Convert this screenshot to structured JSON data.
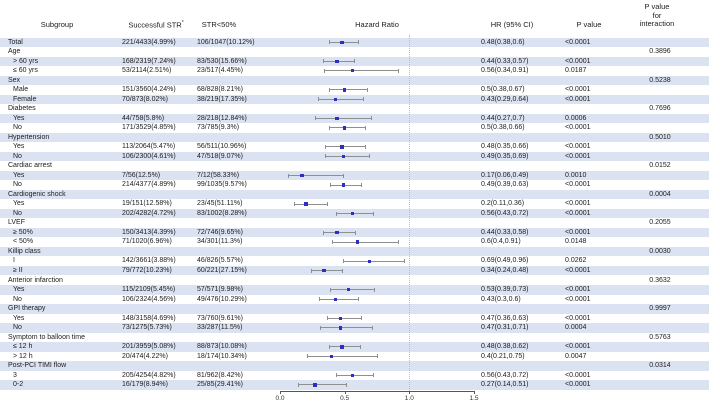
{
  "header": {
    "subgroup": "Subgroup",
    "successful_str": "Successful STR",
    "successful_str_sup": "*",
    "str50": "STR<50%",
    "hazard_ratio": "Hazard Ratio",
    "hr_ci": "HR (95% CI)",
    "p_value": "P value",
    "p_interaction_lines": [
      "P value",
      "for",
      "interaction"
    ]
  },
  "colors": {
    "stripe": "#dbe2f1",
    "marker_blue": "#2d2fbe",
    "ci_gray": "#8f8f8f",
    "refline_gray": "#bcbcc8"
  },
  "chart_data": {
    "type": "scatter",
    "subtype": "forest-plot",
    "title": "",
    "xlabel": "Hazard Ratio",
    "xlim": [
      0,
      1.5
    ],
    "xticks": [
      "0.0",
      "0.5",
      "1.0",
      "1.5"
    ],
    "xtick_values": [
      0,
      0.5,
      1.0,
      1.5
    ],
    "reference_line": 1.0,
    "grid": false,
    "rows": [
      {
        "type": "total",
        "label": "Total",
        "successful": "221/4433(4.99%)",
        "str50": "106/1047(10.12%)",
        "hr": 0.48,
        "lo": 0.38,
        "hi": 0.6,
        "hr_ci": "0.48(0.38,0.6)",
        "p": "<0.0001"
      },
      {
        "type": "group",
        "label": "Age",
        "p_int": "0.3896"
      },
      {
        "type": "item",
        "label": "> 60 yrs",
        "successful": "168/2319(7.24%)",
        "str50": "83/530(15.66%)",
        "hr": 0.44,
        "lo": 0.33,
        "hi": 0.57,
        "hr_ci": "0.44(0.33,0.57)",
        "p": "<0.0001"
      },
      {
        "type": "item",
        "label": "≤ 60 yrs",
        "successful": "53/2114(2.51%)",
        "str50": "23/517(4.45%)",
        "hr": 0.56,
        "lo": 0.34,
        "hi": 0.91,
        "hr_ci": "0.56(0.34,0.91)",
        "p": "0.0187"
      },
      {
        "type": "group",
        "label": "Sex",
        "p_int": "0.5238"
      },
      {
        "type": "item",
        "label": "Male",
        "successful": "151/3560(4.24%)",
        "str50": "68/828(8.21%)",
        "hr": 0.5,
        "lo": 0.38,
        "hi": 0.67,
        "hr_ci": "0.5(0.38,0.67)",
        "p": "<0.0001"
      },
      {
        "type": "item",
        "label": "Female",
        "successful": "70/873(8.02%)",
        "str50": "38/219(17.35%)",
        "hr": 0.43,
        "lo": 0.29,
        "hi": 0.64,
        "hr_ci": "0.43(0.29,0.64)",
        "p": "<0.0001"
      },
      {
        "type": "group",
        "label": "Diabetes",
        "p_int": "0.7696"
      },
      {
        "type": "item",
        "label": "Yes",
        "successful": "44/758(5.8%)",
        "str50": "28/218(12.84%)",
        "hr": 0.44,
        "lo": 0.27,
        "hi": 0.7,
        "hr_ci": "0.44(0.27,0.7)",
        "p": "0.0006"
      },
      {
        "type": "item",
        "label": "No",
        "successful": "171/3529(4.85%)",
        "str50": "73/785(9.3%)",
        "hr": 0.5,
        "lo": 0.38,
        "hi": 0.66,
        "hr_ci": "0.5(0.38,0.66)",
        "p": "<0.0001"
      },
      {
        "type": "group",
        "label": "Hypertension",
        "p_int": "0.5010"
      },
      {
        "type": "item",
        "label": "Yes",
        "successful": "113/2064(5.47%)",
        "str50": "56/511(10.96%)",
        "hr": 0.48,
        "lo": 0.35,
        "hi": 0.66,
        "hr_ci": "0.48(0.35,0.66)",
        "p": "<0.0001"
      },
      {
        "type": "item",
        "label": "No",
        "successful": "106/2300(4.61%)",
        "str50": "47/518(9.07%)",
        "hr": 0.49,
        "lo": 0.35,
        "hi": 0.69,
        "hr_ci": "0.49(0.35,0.69)",
        "p": "<0.0001"
      },
      {
        "type": "group",
        "label": "Cardiac arrest",
        "p_int": "0.0152"
      },
      {
        "type": "item",
        "label": "Yes",
        "successful": "7/56(12.5%)",
        "str50": "7/12(58.33%)",
        "hr": 0.17,
        "lo": 0.06,
        "hi": 0.49,
        "hr_ci": "0.17(0.06,0.49)",
        "p": "0.0010"
      },
      {
        "type": "item",
        "label": "No",
        "successful": "214/4377(4.89%)",
        "str50": "99/1035(9.57%)",
        "hr": 0.49,
        "lo": 0.39,
        "hi": 0.63,
        "hr_ci": "0.49(0.39,0.63)",
        "p": "<0.0001"
      },
      {
        "type": "group",
        "label": "Cardiogenic shock",
        "p_int": "0.0004"
      },
      {
        "type": "item",
        "label": "Yes",
        "successful": "19/151(12.58%)",
        "str50": "23/45(51.11%)",
        "hr": 0.2,
        "lo": 0.11,
        "hi": 0.36,
        "hr_ci": "0.2(0.11,0.36)",
        "p": "<0.0001"
      },
      {
        "type": "item",
        "label": "No",
        "successful": "202/4282(4.72%)",
        "str50": "83/1002(8.28%)",
        "hr": 0.56,
        "lo": 0.43,
        "hi": 0.72,
        "hr_ci": "0.56(0.43,0.72)",
        "p": "<0.0001"
      },
      {
        "type": "group",
        "label": "LVEF",
        "p_int": "0.2055"
      },
      {
        "type": "item",
        "label": "≥ 50%",
        "successful": "150/3413(4.39%)",
        "str50": "72/746(9.65%)",
        "hr": 0.44,
        "lo": 0.33,
        "hi": 0.58,
        "hr_ci": "0.44(0.33,0.58)",
        "p": "<0.0001"
      },
      {
        "type": "item",
        "label": "< 50%",
        "successful": "71/1020(6.96%)",
        "str50": "34/301(11.3%)",
        "hr": 0.6,
        "lo": 0.4,
        "hi": 0.91,
        "hr_ci": "0.6(0.4,0.91)",
        "p": "0.0148"
      },
      {
        "type": "group",
        "label": "Killip class",
        "p_int": "0.0030"
      },
      {
        "type": "item",
        "label": "I",
        "successful": "142/3661(3.88%)",
        "str50": "46/826(5.57%)",
        "hr": 0.69,
        "lo": 0.49,
        "hi": 0.96,
        "hr_ci": "0.69(0.49,0.96)",
        "p": "0.0262"
      },
      {
        "type": "item",
        "label": "≥ II",
        "successful": "79/772(10.23%)",
        "str50": "60/221(27.15%)",
        "hr": 0.34,
        "lo": 0.24,
        "hi": 0.48,
        "hr_ci": "0.34(0.24,0.48)",
        "p": "<0.0001"
      },
      {
        "type": "group",
        "label": "Anterior infarction",
        "p_int": "0.3632"
      },
      {
        "type": "item",
        "label": "Yes",
        "successful": "115/2109(5.45%)",
        "str50": "57/571(9.98%)",
        "hr": 0.53,
        "lo": 0.39,
        "hi": 0.73,
        "hr_ci": "0.53(0.39,0.73)",
        "p": "<0.0001"
      },
      {
        "type": "item",
        "label": "No",
        "successful": "106/2324(4.56%)",
        "str50": "49/476(10.29%)",
        "hr": 0.43,
        "lo": 0.3,
        "hi": 0.6,
        "hr_ci": "0.43(0.3,0.6)",
        "p": "<0.0001"
      },
      {
        "type": "group",
        "label": "GPI therapy",
        "p_int": "0.9997"
      },
      {
        "type": "item",
        "label": "Yes",
        "successful": "148/3158(4.69%)",
        "str50": "73/760(9.61%)",
        "hr": 0.47,
        "lo": 0.36,
        "hi": 0.63,
        "hr_ci": "0.47(0.36,0.63)",
        "p": "<0.0001"
      },
      {
        "type": "item",
        "label": "No",
        "successful": "73/1275(5.73%)",
        "str50": "33/287(11.5%)",
        "hr": 0.47,
        "lo": 0.31,
        "hi": 0.71,
        "hr_ci": "0.47(0.31,0.71)",
        "p": "0.0004"
      },
      {
        "type": "group",
        "label": "Symptom to balloon time",
        "p_int": "0.5763"
      },
      {
        "type": "item",
        "label": "≤ 12 h",
        "successful": "201/3959(5.08%)",
        "str50": "88/873(10.08%)",
        "hr": 0.48,
        "lo": 0.38,
        "hi": 0.62,
        "hr_ci": "0.48(0.38,0.62)",
        "p": "<0.0001"
      },
      {
        "type": "item",
        "label": "> 12 h",
        "successful": "20/474(4.22%)",
        "str50": "18/174(10.34%)",
        "hr": 0.4,
        "lo": 0.21,
        "hi": 0.75,
        "hr_ci": "0.4(0.21,0.75)",
        "p": "0.0047"
      },
      {
        "type": "group",
        "label": "Post-PCI TIMI flow",
        "p_int": "0.0314"
      },
      {
        "type": "item",
        "label": "3",
        "successful": "205/4254(4.82%)",
        "str50": "81/962(8.42%)",
        "hr": 0.56,
        "lo": 0.43,
        "hi": 0.72,
        "hr_ci": "0.56(0.43,0.72)",
        "p": "<0.0001"
      },
      {
        "type": "item",
        "label": "0-2",
        "successful": "16/179(8.94%)",
        "str50": "25/85(29.41%)",
        "hr": 0.27,
        "lo": 0.14,
        "hi": 0.51,
        "hr_ci": "0.27(0.14,0.51)",
        "p": "<0.0001"
      }
    ]
  }
}
